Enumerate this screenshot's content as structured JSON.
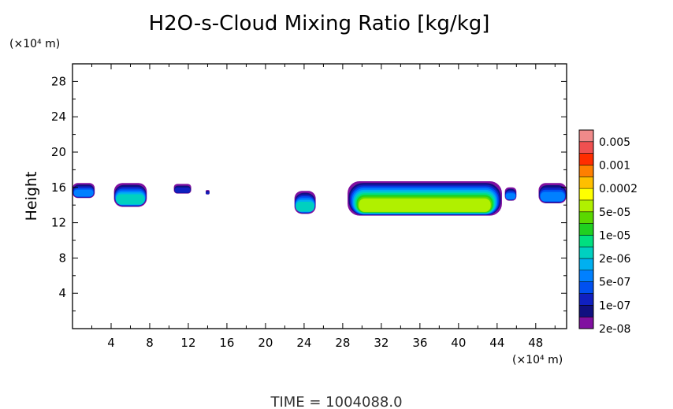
{
  "chart_data": {
    "type": "heatmap",
    "title": "H2O-s-Cloud Mixing Ratio [kg/kg]",
    "xlabel": "",
    "ylabel": "Height",
    "x_unit": "(×10⁴ m)",
    "y_unit": "(×10⁴ m)",
    "xlim": [
      0,
      51.2
    ],
    "ylim": [
      0,
      30
    ],
    "x_ticks": [
      "4",
      "8",
      "12",
      "16",
      "20",
      "24",
      "28",
      "32",
      "36",
      "40",
      "44",
      "48"
    ],
    "y_ticks": [
      "4",
      "8",
      "12",
      "16",
      "20",
      "24",
      "28"
    ],
    "colorbar": {
      "levels_labeled": [
        "0.005",
        "0.001",
        "0.0002",
        "5e-05",
        "1e-05",
        "2e-06",
        "5e-07",
        "1e-07",
        "2e-08"
      ],
      "colors": [
        "#f08a8a",
        "#f05050",
        "#ff2d00",
        "#ff7f00",
        "#ffbf00",
        "#ffff00",
        "#b0f000",
        "#5ad800",
        "#20d020",
        "#00e080",
        "#00d0c0",
        "#00b0f0",
        "#0080ff",
        "#0050f0",
        "#1020c0",
        "#101080",
        "#8010a0"
      ]
    },
    "regions": [
      {
        "x": [
          0,
          2.3
        ],
        "y": [
          14.8,
          16.5
        ],
        "max_level": "5e-07"
      },
      {
        "x": [
          4.3,
          7.7
        ],
        "y": [
          13.8,
          16.5
        ],
        "max_level": "2e-06"
      },
      {
        "x": [
          10.5,
          12.3
        ],
        "y": [
          15.3,
          16.4
        ],
        "max_level": "1e-07"
      },
      {
        "x": [
          13.8,
          14.2
        ],
        "y": [
          15.2,
          15.7
        ],
        "max_level": "1e-07"
      },
      {
        "x": [
          23,
          25.2
        ],
        "y": [
          13.0,
          15.6
        ],
        "max_level": "2e-06"
      },
      {
        "x": [
          28.5,
          44.5
        ],
        "y": [
          12.8,
          16.7
        ],
        "max_level": "5e-05"
      },
      {
        "x": [
          44.8,
          46
        ],
        "y": [
          14.5,
          16.0
        ],
        "max_level": "5e-07"
      },
      {
        "x": [
          48.3,
          51.2
        ],
        "y": [
          14.2,
          16.5
        ],
        "max_level": "5e-07"
      }
    ]
  },
  "footer": {
    "time_label": "TIME  =  1004088.0"
  }
}
